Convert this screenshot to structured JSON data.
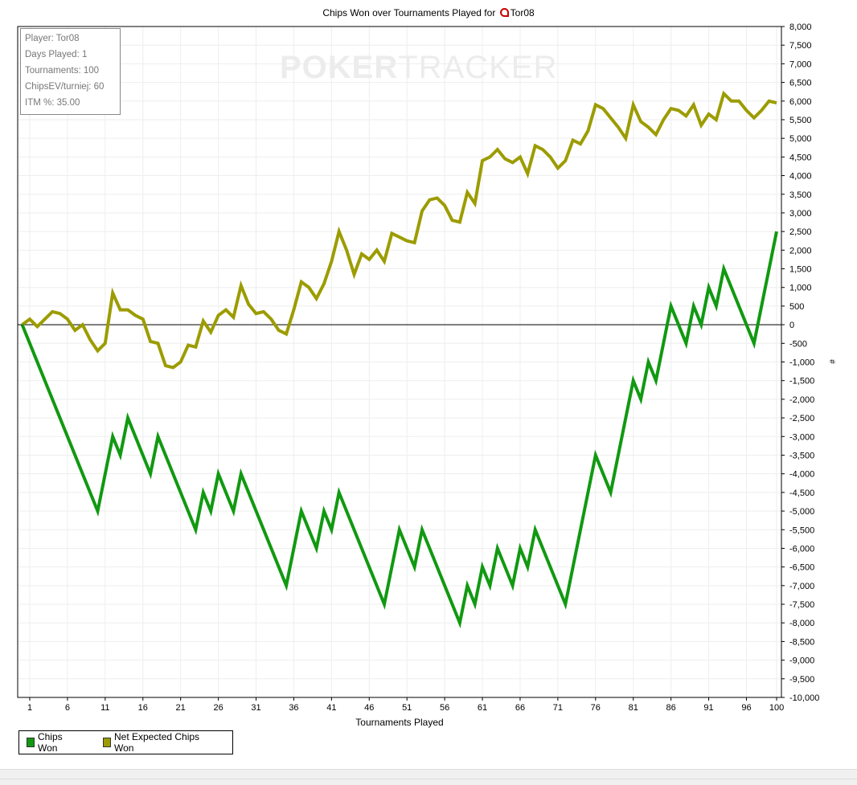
{
  "chart_data": {
    "type": "line",
    "title": "Chips Won over Tournaments Played for",
    "title_player": "Tor08",
    "xlabel": "Tournaments Played",
    "ylabel": "#",
    "xlim": [
      0,
      100
    ],
    "ylim": [
      -10000,
      8000
    ],
    "xticks": [
      1,
      6,
      11,
      16,
      21,
      26,
      31,
      36,
      41,
      46,
      51,
      56,
      61,
      66,
      71,
      76,
      81,
      86,
      91,
      96,
      100
    ],
    "yticks_step": 500,
    "ytick_labels": [
      "8,000",
      "7,500",
      "7,000",
      "6,500",
      "6,000",
      "5,500",
      "5,000",
      "4,500",
      "4,000",
      "3,500",
      "3,000",
      "2,500",
      "2,000",
      "1,500",
      "1,000",
      "500",
      "0",
      "-500",
      "-1,000",
      "-1,500",
      "-2,000",
      "-2,500",
      "-3,000",
      "-3,500",
      "-4,000",
      "-4,500",
      "-5,000",
      "-5,500",
      "-6,000",
      "-6,500",
      "-7,000",
      "-7,500",
      "-8,000",
      "-8,500",
      "-9,000",
      "-9,500",
      "-10,000"
    ],
    "grid": true,
    "legend_position": "bottom-left",
    "series": [
      {
        "name": "Chips Won",
        "color": "#119911",
        "x": [
          0,
          10,
          12,
          13,
          14,
          17,
          18,
          23,
          24,
          25,
          26,
          28,
          29,
          35,
          37,
          39,
          40,
          41,
          42,
          48,
          50,
          52,
          53,
          58,
          59,
          60,
          61,
          62,
          63,
          65,
          66,
          67,
          68,
          72,
          76,
          78,
          81,
          82,
          83,
          84,
          86,
          88,
          89,
          90,
          91,
          92,
          93,
          97,
          100
        ],
        "y": [
          0,
          -5000,
          -3000,
          -3500,
          -2500,
          -4000,
          -3000,
          -5500,
          -4500,
          -5000,
          -4000,
          -5000,
          -4000,
          -7000,
          -5000,
          -6000,
          -5000,
          -5500,
          -4500,
          -7500,
          -5500,
          -6500,
          -5500,
          -8000,
          -7000,
          -7500,
          -6500,
          -7000,
          -6000,
          -7000,
          -6000,
          -6500,
          -5500,
          -7500,
          -3500,
          -4500,
          -1500,
          -2000,
          -1000,
          -1500,
          500,
          -500,
          500,
          0,
          1000,
          500,
          1500,
          -500,
          2500
        ]
      },
      {
        "name": "Net Expected Chips Won",
        "color": "#9c9c00",
        "x_start": 0,
        "y": [
          0,
          150,
          -50,
          150,
          350,
          300,
          150,
          -150,
          0,
          -400,
          -700,
          -500,
          850,
          400,
          400,
          250,
          150,
          -450,
          -500,
          -1100,
          -1150,
          -1000,
          -550,
          -600,
          100,
          -200,
          250,
          400,
          200,
          1050,
          550,
          300,
          350,
          150,
          -150,
          -250,
          400,
          1150,
          1000,
          700,
          1100,
          1700,
          2500,
          2000,
          1350,
          1900,
          1750,
          2000,
          1700,
          2450,
          2350,
          2250,
          2200,
          3050,
          3350,
          3400,
          3200,
          2800,
          2750,
          3550,
          3250,
          4400,
          4500,
          4700,
          4450,
          4350,
          4500,
          4050,
          4800,
          4700,
          4500,
          4200,
          4400,
          4950,
          4850,
          5200,
          5900,
          5800,
          5550,
          5300,
          5000,
          5900,
          5450,
          5300,
          5100,
          5500,
          5800,
          5750,
          5600,
          5900,
          5350,
          5650,
          5500,
          6200,
          6000,
          6000,
          5750,
          5550,
          5750,
          6000,
          5950
        ]
      }
    ]
  },
  "info_box": [
    "Player: Tor08",
    "Days Played: 1",
    "Tournaments: 100",
    "ChipsEV/turniej: 60",
    "ITM %: 35.00"
  ],
  "watermark": {
    "bold": "POKER",
    "thin": "TRACKER"
  }
}
